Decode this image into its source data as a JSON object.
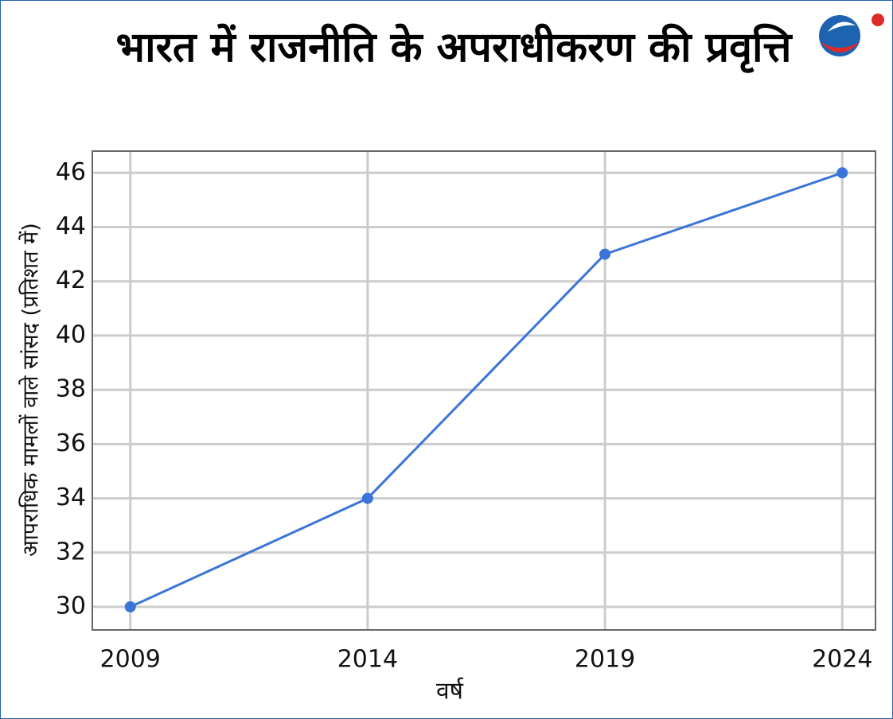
{
  "chart_data": {
    "type": "line",
    "title": "भारत में राजनीति के अपराधीकरण की प्रवृत्ति",
    "x_label": "वर्ष",
    "y_label": "आपराधिक मामलों वाले सांसद (प्रतिशत में)",
    "x": [
      2009,
      2014,
      2019,
      2024
    ],
    "series": [
      {
        "color": "#3a74d8",
        "values": [
          30,
          34,
          43,
          46
        ]
      }
    ],
    "xlim": [
      2008.2,
      2024.7
    ],
    "xticks": [
      2009,
      2014,
      2019,
      2024
    ],
    "ylim": [
      29.15,
      46.8
    ],
    "yticks": [
      30,
      32,
      34,
      36,
      38,
      40,
      42,
      44,
      46
    ],
    "grid": true
  }
}
